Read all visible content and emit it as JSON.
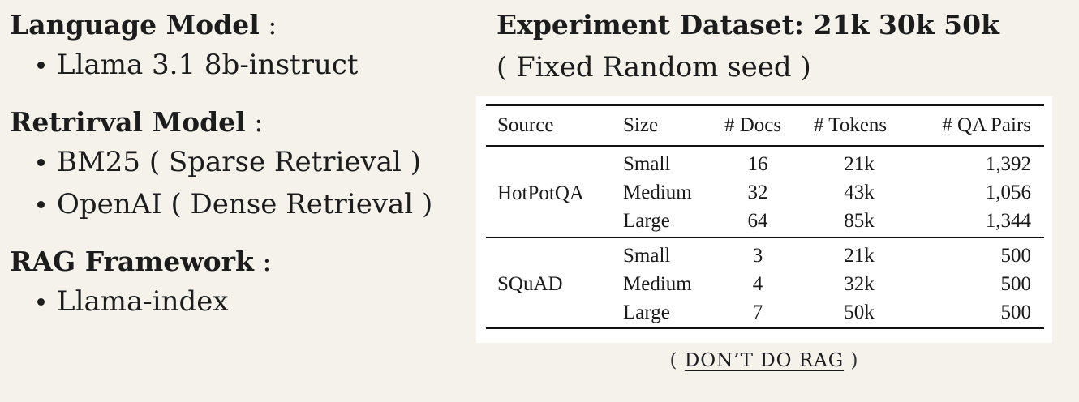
{
  "left": {
    "sections": [
      {
        "heading": "Language Model",
        "colon": " :",
        "items": [
          "Llama 3.1 8b-instruct"
        ]
      },
      {
        "heading": "Retrirval Model",
        "colon": " :",
        "items": [
          "BM25  ( Sparse Retrieval )",
          "OpenAI ( Dense Retrieval )"
        ]
      },
      {
        "heading": "RAG Framework",
        "colon": " :",
        "items": [
          "Llama-index"
        ]
      }
    ]
  },
  "right": {
    "title": "Experiment Dataset: 21k 30k 50k",
    "subtitle": "( Fixed Random seed )"
  },
  "table": {
    "headers": [
      "Source",
      "Size",
      "# Docs",
      "# Tokens",
      "# QA Pairs"
    ],
    "groups": [
      {
        "source": "HotPotQA",
        "rows": [
          {
            "size": "Small",
            "docs": "16",
            "tokens": "21k",
            "qa": "1,392"
          },
          {
            "size": "Medium",
            "docs": "32",
            "tokens": "43k",
            "qa": "1,056"
          },
          {
            "size": "Large",
            "docs": "64",
            "tokens": "85k",
            "qa": "1,344"
          }
        ]
      },
      {
        "source": "SQuAD",
        "rows": [
          {
            "size": "Small",
            "docs": "3",
            "tokens": "21k",
            "qa": "500"
          },
          {
            "size": "Medium",
            "docs": "4",
            "tokens": "32k",
            "qa": "500"
          },
          {
            "size": "Large",
            "docs": "7",
            "tokens": "50k",
            "qa": "500"
          }
        ]
      }
    ]
  },
  "footer": {
    "open": "(",
    "link": "DON’T DO RAG",
    "close": ")"
  },
  "colors": {
    "background": "#f5f2ec",
    "table_bg": "#ffffff",
    "text": "#1c1c1c"
  }
}
